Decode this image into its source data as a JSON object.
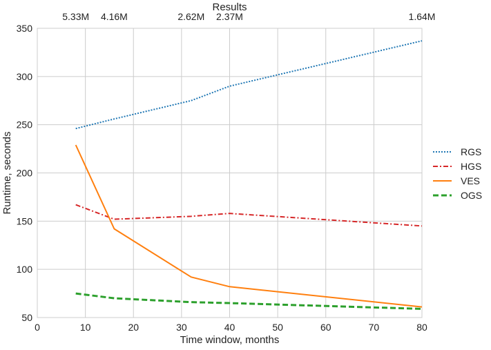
{
  "chart_data": {
    "type": "line",
    "title": "",
    "xlabel": "Time window, months",
    "ylabel": "Runtime, seconds",
    "xlim": [
      0,
      80
    ],
    "ylim": [
      50,
      350
    ],
    "xticks": [
      0,
      10,
      20,
      30,
      40,
      50,
      60,
      70,
      80
    ],
    "yticks": [
      50,
      100,
      150,
      200,
      250,
      300,
      350
    ],
    "grid": true,
    "legend_position": "right",
    "top_axis": {
      "label": "Results",
      "ticks": [
        {
          "x": 8,
          "label": "5.33M"
        },
        {
          "x": 16,
          "label": "4.16M"
        },
        {
          "x": 32,
          "label": "2.62M"
        },
        {
          "x": 40,
          "label": "2.37M"
        },
        {
          "x": 80,
          "label": "1.64M"
        }
      ]
    },
    "x": [
      8,
      16,
      32,
      40,
      80
    ],
    "series": [
      {
        "name": "RGS",
        "values": [
          246,
          256,
          275,
          290,
          337
        ],
        "color": "#1f77b4",
        "style": "dotted"
      },
      {
        "name": "HGS",
        "values": [
          167,
          152,
          155,
          158,
          145
        ],
        "color": "#d62728",
        "style": "dashdot"
      },
      {
        "name": "VES",
        "values": [
          229,
          142,
          92,
          82,
          61
        ],
        "color": "#ff7f0e",
        "style": "solid"
      },
      {
        "name": "OGS",
        "values": [
          75,
          70,
          66,
          65,
          59
        ],
        "color": "#2ca02c",
        "style": "dashed"
      }
    ]
  }
}
